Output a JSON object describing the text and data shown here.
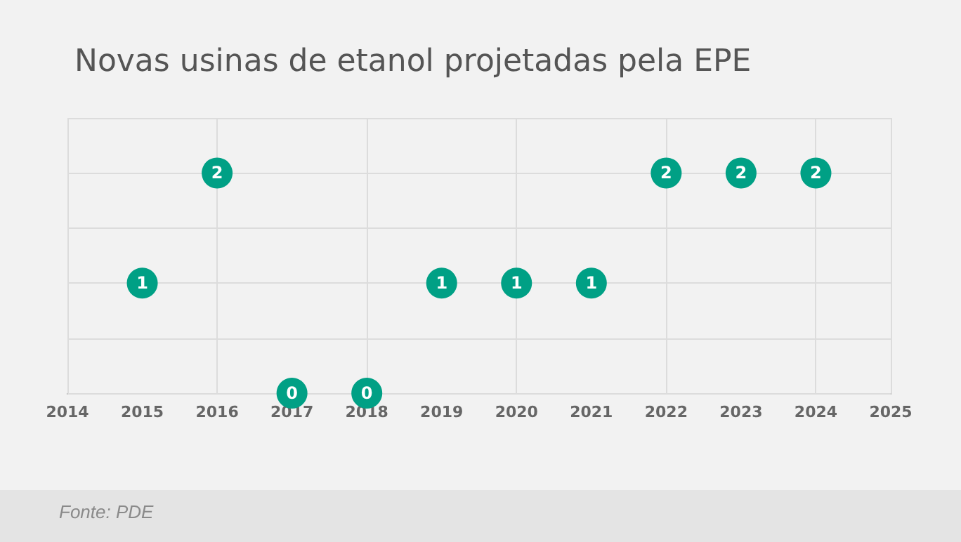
{
  "chart_data": {
    "type": "scatter",
    "title": "Novas usinas de etanol projetadas pela EPE",
    "x": [
      2015,
      2016,
      2017,
      2018,
      2019,
      2020,
      2021,
      2022,
      2023,
      2024
    ],
    "series": [
      {
        "color": "#00a085",
        "values": [
          1,
          2,
          0,
          0,
          1,
          1,
          1,
          2,
          2,
          2
        ]
      }
    ],
    "xlim": [
      2014,
      2025
    ],
    "xticks": [
      2014,
      2015,
      2016,
      2017,
      2018,
      2019,
      2020,
      2021,
      2022,
      2023,
      2024,
      2025
    ],
    "ylim": [
      0,
      2.5
    ],
    "yticks": [
      {
        "value": 0,
        "label": null
      },
      {
        "value": 0.5,
        "label": null
      },
      {
        "value": 1,
        "label": null
      },
      {
        "value": 1.5,
        "label": null
      },
      {
        "value": 2,
        "label": null
      },
      {
        "value": 2.5,
        "label": null
      }
    ],
    "tick_labels": "x",
    "grid": true,
    "marker": "circle",
    "data_labels": true,
    "annotations": [
      "Fonte: PDE"
    ]
  }
}
